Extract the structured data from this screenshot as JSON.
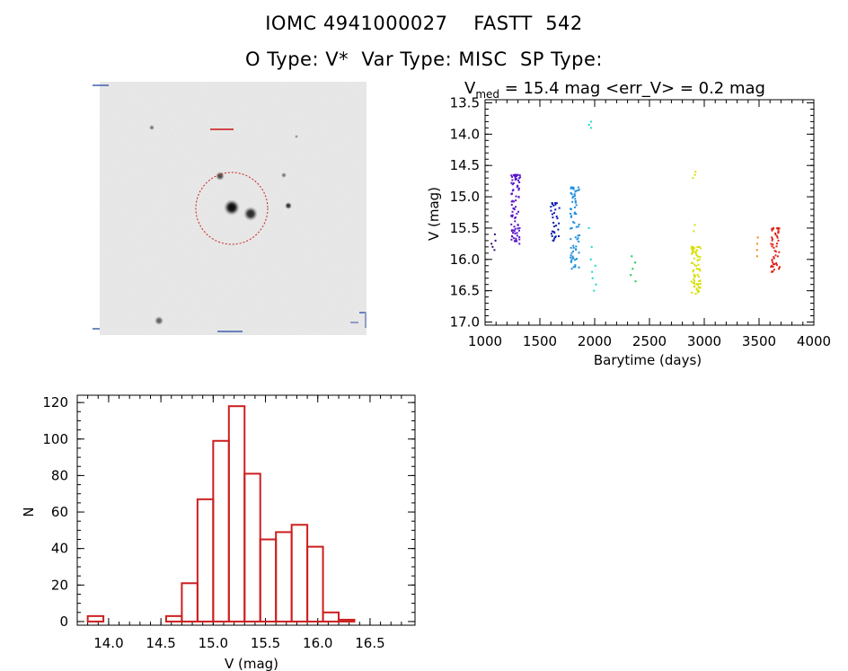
{
  "header": {
    "title": "IOMC 4941000027    FASTT  542",
    "subtitle": "O Type: V*  Var Type: MISC  SP Type:"
  },
  "thumbnail": {
    "aperture_color": "#cc1f1f",
    "background_color": "#ebebeb"
  },
  "chart_data": [
    {
      "type": "scatter",
      "title_main": "V",
      "title_sub": "med",
      "title_rest": " = 15.4 mag <err_V> = 0.2 mag",
      "xlabel": "Barytime (days)",
      "ylabel": "V (mag)",
      "xlim": [
        1000,
        4000
      ],
      "ylim": [
        17.05,
        13.45
      ],
      "y_inverted": true,
      "x_ticks": [
        "1000",
        "1500",
        "2000",
        "2500",
        "3000",
        "3500",
        "4000"
      ],
      "y_ticks": [
        "13.5",
        "14.0",
        "14.5",
        "15.0",
        "15.5",
        "16.0",
        "16.5",
        "17.0"
      ],
      "series": [
        {
          "color": "#3d0a7a",
          "x": 1090,
          "points": [
            15.6,
            15.7,
            15.75,
            15.8,
            15.85
          ]
        },
        {
          "color": "#5a15c8",
          "x": 1280,
          "ymin": 14.65,
          "ymax": 15.75,
          "dense": 80
        },
        {
          "color": "#0a1ab0",
          "x": 1640,
          "ymin": 15.1,
          "ymax": 15.7,
          "dense": 30
        },
        {
          "color": "#1e8fe0",
          "x": 1820,
          "ymin": 14.85,
          "ymax": 16.15,
          "dense": 70
        },
        {
          "color": "#19d9c4",
          "x": 1980,
          "points": [
            13.8,
            13.85,
            13.9,
            15.5,
            15.8,
            16.0,
            16.1,
            16.2,
            16.3,
            16.4,
            16.5
          ]
        },
        {
          "color": "#25c852",
          "x": 2350,
          "points": [
            15.95,
            16.05,
            16.15,
            16.25,
            16.35
          ]
        },
        {
          "color": "#d6e000",
          "x": 2925,
          "ymin": 15.8,
          "ymax": 16.55,
          "dense": 70,
          "extra": [
            14.6,
            14.65,
            14.7,
            15.45,
            15.55
          ]
        },
        {
          "color": "#f08a0f",
          "x": 3510,
          "points": [
            15.65,
            15.75,
            15.85,
            15.95
          ]
        },
        {
          "color": "#e0241a",
          "x": 3650,
          "ymin": 15.5,
          "ymax": 16.2,
          "dense": 50
        }
      ]
    },
    {
      "type": "bar",
      "histogram": true,
      "xlabel": "V (mag)",
      "ylabel": "N",
      "xlim": [
        13.7,
        16.93
      ],
      "ylim": [
        -2,
        124
      ],
      "bar_color": "#cc1f1f",
      "bin_width": 0.15,
      "bin_starts": [
        13.8,
        14.55,
        14.7,
        14.85,
        15.0,
        15.15,
        15.3,
        15.45,
        15.6,
        15.75,
        15.9,
        16.05,
        16.2,
        16.35,
        16.5
      ],
      "values": [
        3,
        3,
        21,
        67,
        99,
        118,
        81,
        45,
        49,
        53,
        41,
        5,
        1,
        0,
        0
      ],
      "x_ticks": [
        "14.0",
        "14.5",
        "15.0",
        "15.5",
        "16.0",
        "16.5"
      ],
      "y_ticks": [
        "0",
        "20",
        "40",
        "60",
        "80",
        "100",
        "120"
      ]
    }
  ]
}
